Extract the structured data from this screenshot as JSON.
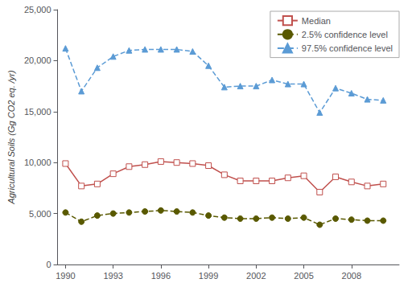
{
  "chart_data": {
    "type": "line",
    "ylabel": "Agricultural Soils (Gg CO2 eq. /yr)",
    "x": [
      1990,
      1991,
      1992,
      1993,
      1994,
      1995,
      1996,
      1997,
      1998,
      1999,
      2000,
      2001,
      2002,
      2003,
      2004,
      2005,
      2006,
      2007,
      2008,
      2009,
      2010
    ],
    "series": [
      {
        "name": "Median",
        "color": "#c0504d",
        "marker": "square",
        "line_style": "solid",
        "values": [
          9900,
          7700,
          7900,
          8900,
          9600,
          9800,
          10100,
          10000,
          9900,
          9700,
          8800,
          8200,
          8200,
          8200,
          8500,
          8700,
          7100,
          8600,
          8100,
          7700,
          7900
        ]
      },
      {
        "name": "2.5% confidence level",
        "color": "#595900",
        "marker": "circle",
        "line_style": "dashed",
        "values": [
          5100,
          4200,
          4800,
          5000,
          5100,
          5200,
          5300,
          5200,
          5100,
          4800,
          4600,
          4500,
          4500,
          4600,
          4500,
          4600,
          3900,
          4500,
          4400,
          4300,
          4300
        ]
      },
      {
        "name": "97.5% confidence level",
        "color": "#5b9bd5",
        "marker": "triangle",
        "line_style": "dashed",
        "values": [
          21200,
          17000,
          19300,
          20400,
          21000,
          21100,
          21100,
          21100,
          20900,
          19500,
          17400,
          17500,
          17500,
          18100,
          17700,
          17700,
          14900,
          17300,
          16800,
          16200,
          16100
        ]
      }
    ],
    "xlim": [
      1989.5,
      2011.0
    ],
    "xticks": [
      1990,
      1993,
      1996,
      1999,
      2002,
      2005,
      2008
    ],
    "ylim": [
      0,
      25000
    ],
    "yticks": [
      0,
      {
        "value": 5000,
        "label": "5,000"
      },
      {
        "value": 10000,
        "label": "10,000"
      },
      {
        "value": 15000,
        "label": "15,000"
      },
      {
        "value": 20000,
        "label": "20,000"
      },
      {
        "value": 25000,
        "label": "25,000"
      }
    ],
    "grid": false,
    "legend": "upper right"
  }
}
